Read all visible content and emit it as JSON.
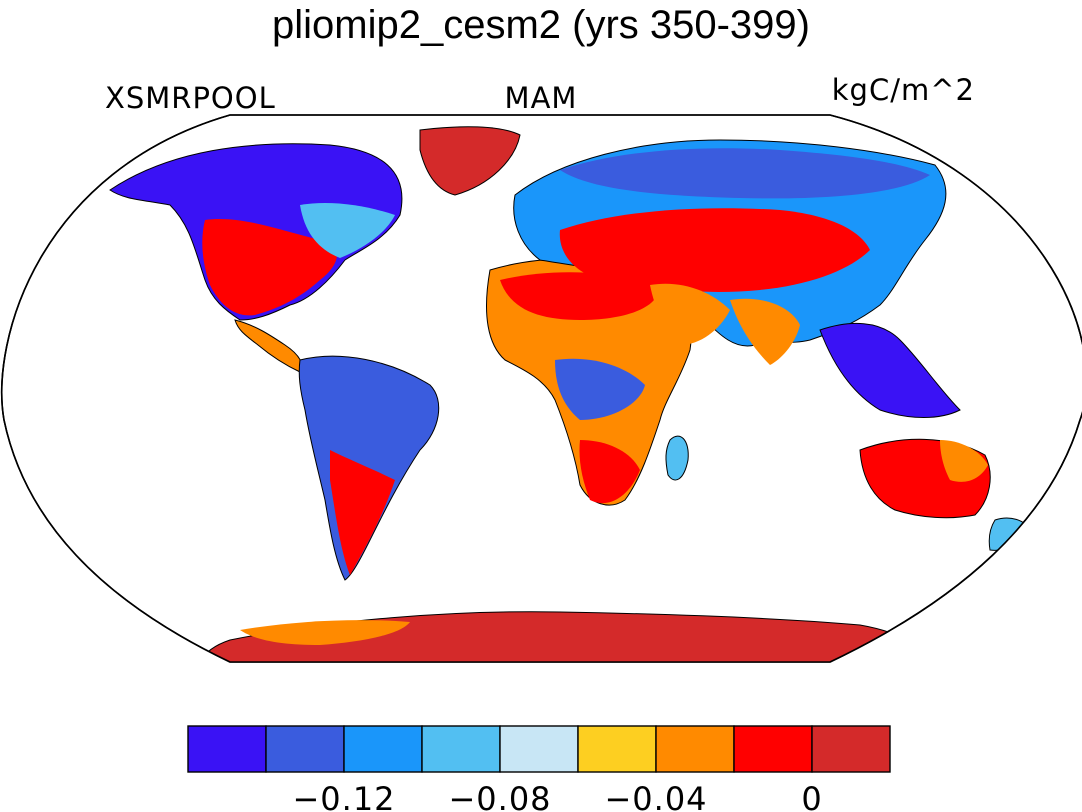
{
  "title": "pliomip2_cesm2 (yrs 350-399)",
  "labels": {
    "variable": "XSMRPOOL",
    "season": "MAM",
    "units": "kgC/m^2"
  },
  "colorbar": {
    "colors": [
      "#3a12f5",
      "#3a5cde",
      "#1a96fa",
      "#52bff2",
      "#c8e6f5",
      "#fdcf21",
      "#ff8a00",
      "#ff0000",
      "#d42a2a"
    ],
    "tick_labels": [
      "−0.12",
      "−0.08",
      "−0.04",
      "0"
    ]
  }
}
